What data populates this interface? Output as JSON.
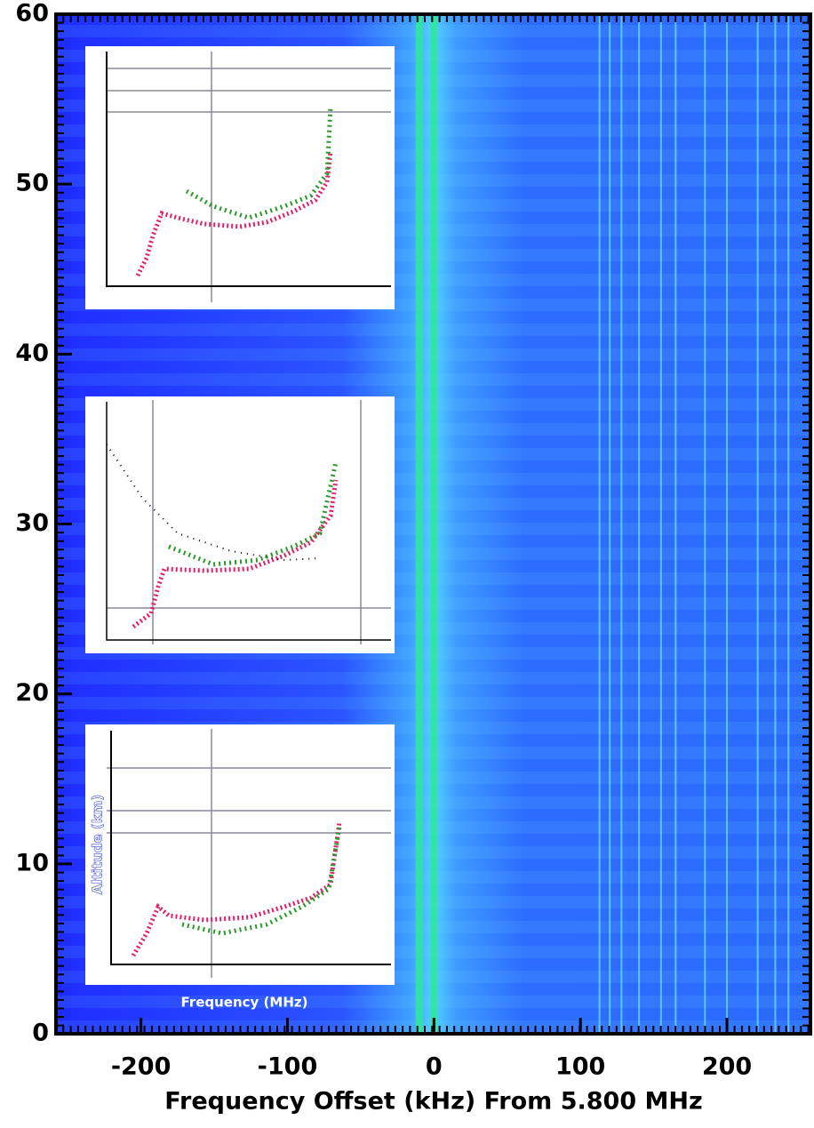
{
  "chart_data": {
    "type": "spectrogram",
    "x_label": "Frequency Offset (kHz) From 5.800 MHz",
    "xlim": [
      -258,
      257
    ],
    "ylim": [
      0,
      60
    ],
    "xticks": [
      -200,
      -100,
      0,
      100,
      200
    ],
    "yticks": [
      0,
      10,
      20,
      30,
      40,
      50,
      60
    ],
    "carrier_lines": [
      -10,
      0
    ],
    "spur_lines": [
      113,
      120,
      128,
      140,
      155,
      165,
      185,
      200,
      221,
      233,
      242
    ],
    "color": "#1e2cff",
    "inset_labels": {
      "y_label": "Altitude (km)",
      "x_label": "Frequency (MHz)"
    }
  }
}
